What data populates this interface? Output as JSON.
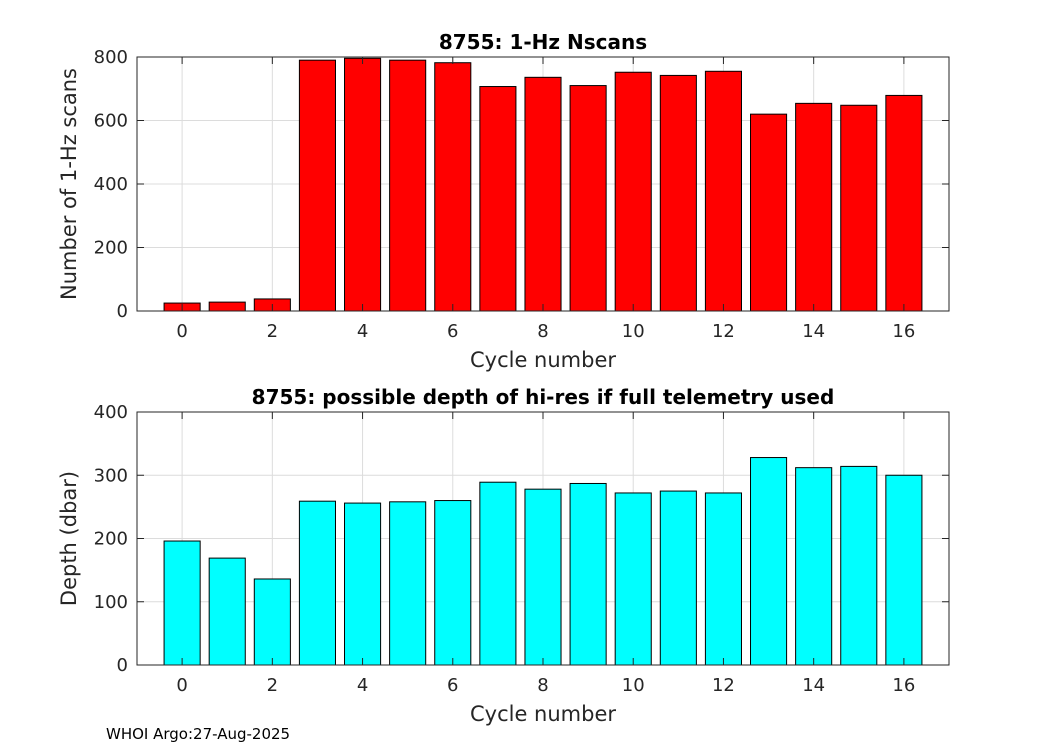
{
  "footer": "WHOI Argo:27-Aug-2025",
  "chart_data": [
    {
      "type": "bar",
      "title": "8755: 1-Hz Nscans",
      "xlabel": "Cycle number",
      "ylabel": "Number of 1-Hz scans",
      "x": [
        0,
        1,
        2,
        3,
        4,
        5,
        6,
        7,
        8,
        9,
        10,
        11,
        12,
        13,
        14,
        15,
        16
      ],
      "values": [
        25,
        28,
        38,
        790,
        796,
        790,
        782,
        707,
        736,
        710,
        752,
        742,
        755,
        620,
        654,
        648,
        679
      ],
      "xlim": [
        -1,
        17
      ],
      "ylim": [
        0,
        800
      ],
      "xticks": [
        0,
        2,
        4,
        6,
        8,
        10,
        12,
        14,
        16
      ],
      "yticks": [
        0,
        200,
        400,
        600,
        800
      ],
      "bar_color": "#ff0000",
      "grid": true
    },
    {
      "type": "bar",
      "title": "8755: possible depth of hi-res if full telemetry used",
      "xlabel": "Cycle number",
      "ylabel": "Depth (dbar)",
      "x": [
        0,
        1,
        2,
        3,
        4,
        5,
        6,
        7,
        8,
        9,
        10,
        11,
        12,
        13,
        14,
        15,
        16
      ],
      "values": [
        196,
        169,
        136,
        259,
        256,
        258,
        260,
        289,
        278,
        287,
        272,
        275,
        272,
        328,
        312,
        314,
        300
      ],
      "xlim": [
        -1,
        17
      ],
      "ylim": [
        0,
        400
      ],
      "xticks": [
        0,
        2,
        4,
        6,
        8,
        10,
        12,
        14,
        16
      ],
      "yticks": [
        0,
        100,
        200,
        300,
        400
      ],
      "bar_color": "#00ffff",
      "grid": true
    }
  ]
}
